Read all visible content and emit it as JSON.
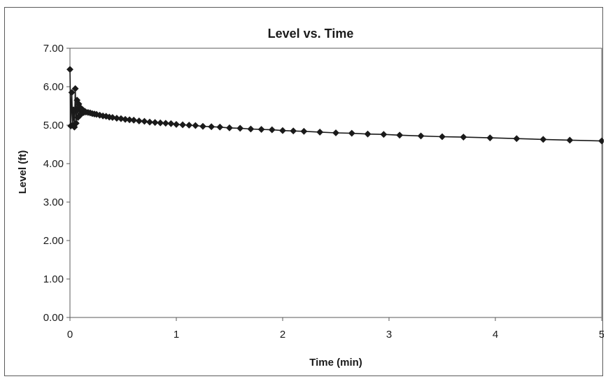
{
  "chart_data": {
    "type": "scatter",
    "title": "Level vs. Time",
    "xlabel": "Time (min)",
    "ylabel": "Level (ft)",
    "xlim": [
      0,
      5
    ],
    "ylim": [
      0,
      7
    ],
    "xticks": [
      "0",
      "1",
      "2",
      "3",
      "4",
      "5"
    ],
    "yticks": [
      "0.00",
      "1.00",
      "2.00",
      "3.00",
      "4.00",
      "5.00",
      "6.00",
      "7.00"
    ],
    "grid": false,
    "legend": "none",
    "line_color": "#1a1a1a",
    "marker": "diamond",
    "series": [
      {
        "x": [
          0.0,
          0.008,
          0.017,
          0.025,
          0.033,
          0.042,
          0.05,
          0.058,
          0.067,
          0.075,
          0.083,
          0.092,
          0.1,
          0.11,
          0.12,
          0.13,
          0.14,
          0.15,
          0.17,
          0.19,
          0.21,
          0.23,
          0.25,
          0.28,
          0.31,
          0.34,
          0.37,
          0.4,
          0.44,
          0.48,
          0.52,
          0.56,
          0.6,
          0.65,
          0.7,
          0.75,
          0.8,
          0.85,
          0.9,
          0.95,
          1.0,
          1.06,
          1.12,
          1.18,
          1.25,
          1.33,
          1.41,
          1.5,
          1.6,
          1.7,
          1.8,
          1.9,
          2.0,
          2.1,
          2.2,
          2.35,
          2.5,
          2.65,
          2.8,
          2.95,
          3.1,
          3.3,
          3.5,
          3.7,
          3.95,
          4.2,
          4.45,
          4.7,
          5.0
        ],
        "y": [
          6.45,
          4.98,
          5.85,
          5.0,
          5.4,
          4.95,
          5.95,
          5.05,
          5.65,
          5.2,
          5.55,
          5.25,
          5.45,
          5.3,
          5.4,
          5.33,
          5.36,
          5.34,
          5.33,
          5.32,
          5.3,
          5.29,
          5.28,
          5.26,
          5.24,
          5.23,
          5.21,
          5.2,
          5.18,
          5.17,
          5.15,
          5.14,
          5.13,
          5.11,
          5.1,
          5.08,
          5.07,
          5.06,
          5.05,
          5.04,
          5.02,
          5.01,
          5.0,
          4.99,
          4.97,
          4.96,
          4.95,
          4.93,
          4.92,
          4.9,
          4.89,
          4.88,
          4.86,
          4.85,
          4.84,
          4.82,
          4.8,
          4.79,
          4.77,
          4.76,
          4.74,
          4.72,
          4.7,
          4.69,
          4.67,
          4.65,
          4.63,
          4.61,
          4.59
        ]
      }
    ]
  }
}
